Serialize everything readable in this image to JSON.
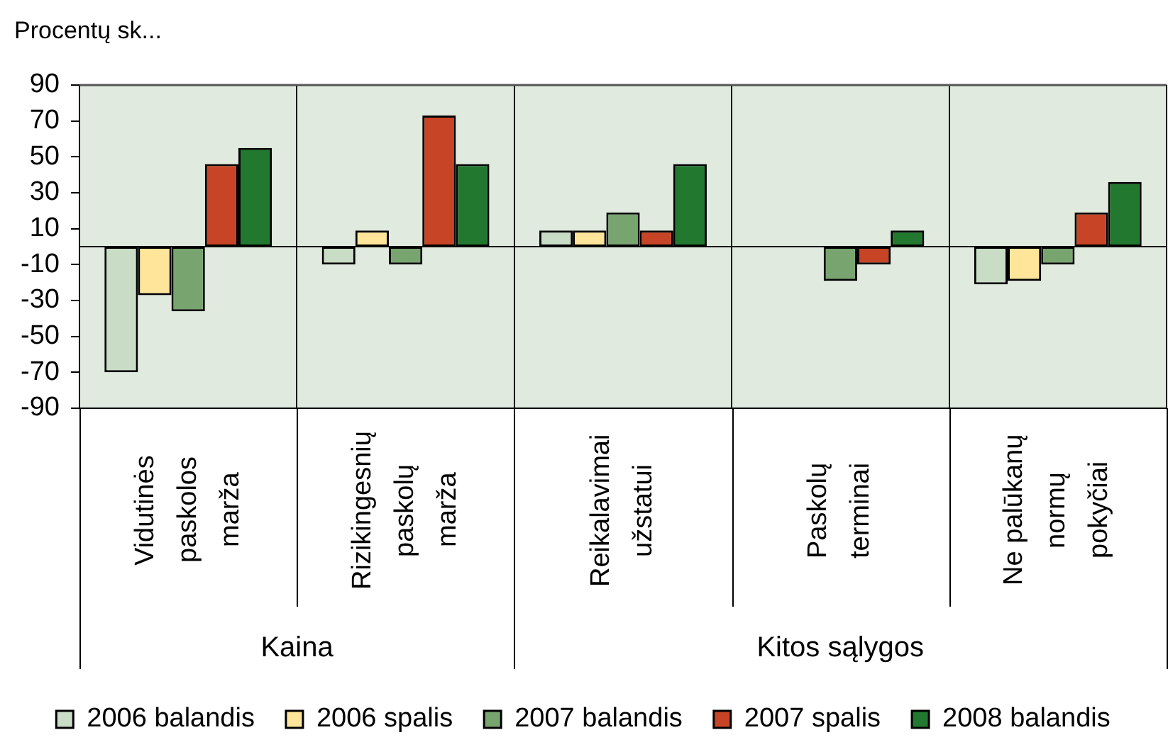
{
  "chart_data": {
    "type": "bar",
    "ylabel": "Procentų sk...",
    "categories": [
      "Vidutinės paskolos marža",
      "Rizikingesnių paskolų marža",
      "Reikalavimai užstatui",
      "Paskolų terminai",
      "Ne palūkanų normų pokyčiai"
    ],
    "series": [
      {
        "name": "2006 balandis",
        "color": "#c9dcc5",
        "values": [
          -70,
          -10,
          9,
          0,
          -21
        ]
      },
      {
        "name": "2006 spalis",
        "color": "#fee599",
        "values": [
          -27,
          9,
          9,
          0,
          -19
        ]
      },
      {
        "name": "2007 balandis",
        "color": "#78a56f",
        "values": [
          -36,
          -10,
          19,
          -19,
          -10
        ]
      },
      {
        "name": "2007 spalis",
        "color": "#c74526",
        "values": [
          46,
          73,
          9,
          -10,
          19
        ]
      },
      {
        "name": "2008 balandis",
        "color": "#22782f",
        "values": [
          55,
          46,
          46,
          9,
          36
        ]
      }
    ],
    "ylim": [
      -90,
      90
    ],
    "yticks": [
      -90,
      -70,
      -50,
      -30,
      -10,
      10,
      30,
      50,
      70,
      90
    ],
    "grid": "x",
    "legend": "bottom",
    "annotations": [
      "Kaina",
      "Kitos sąlygos"
    ]
  }
}
